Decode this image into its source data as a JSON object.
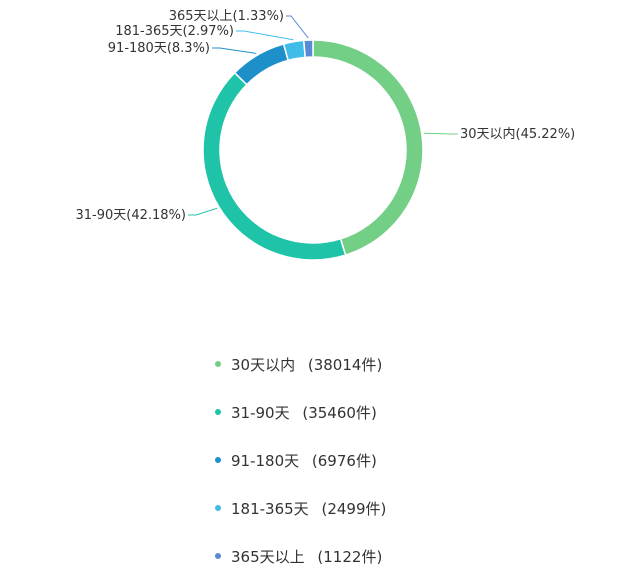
{
  "chart_data": {
    "type": "pie",
    "variant": "donut",
    "title": "",
    "slices": [
      {
        "label": "30天以内",
        "value": 38014,
        "percent_label": "30天以内(45.22%)",
        "count_label": "38014件",
        "color": "#74cf86"
      },
      {
        "label": "31-90天",
        "value": 35460,
        "percent_label": "31-90天(42.18%)",
        "count_label": "35460件",
        "color": "#1fc4a8"
      },
      {
        "label": "91-180天",
        "value": 6976,
        "percent_label": "91-180天(8.3%)",
        "count_label": "6976件",
        "color": "#1e90c9"
      },
      {
        "label": "181-365天",
        "value": 2499,
        "percent_label": "181-365天(2.97%)",
        "count_label": "2499件",
        "color": "#40bce9"
      },
      {
        "label": "365天以上",
        "value": 1122,
        "percent_label": "365天以上(1.33%)",
        "count_label": "1122件",
        "color": "#5a8ad6"
      }
    ],
    "legend_position": "bottom",
    "start_angle_deg": 0,
    "direction": "clockwise"
  }
}
